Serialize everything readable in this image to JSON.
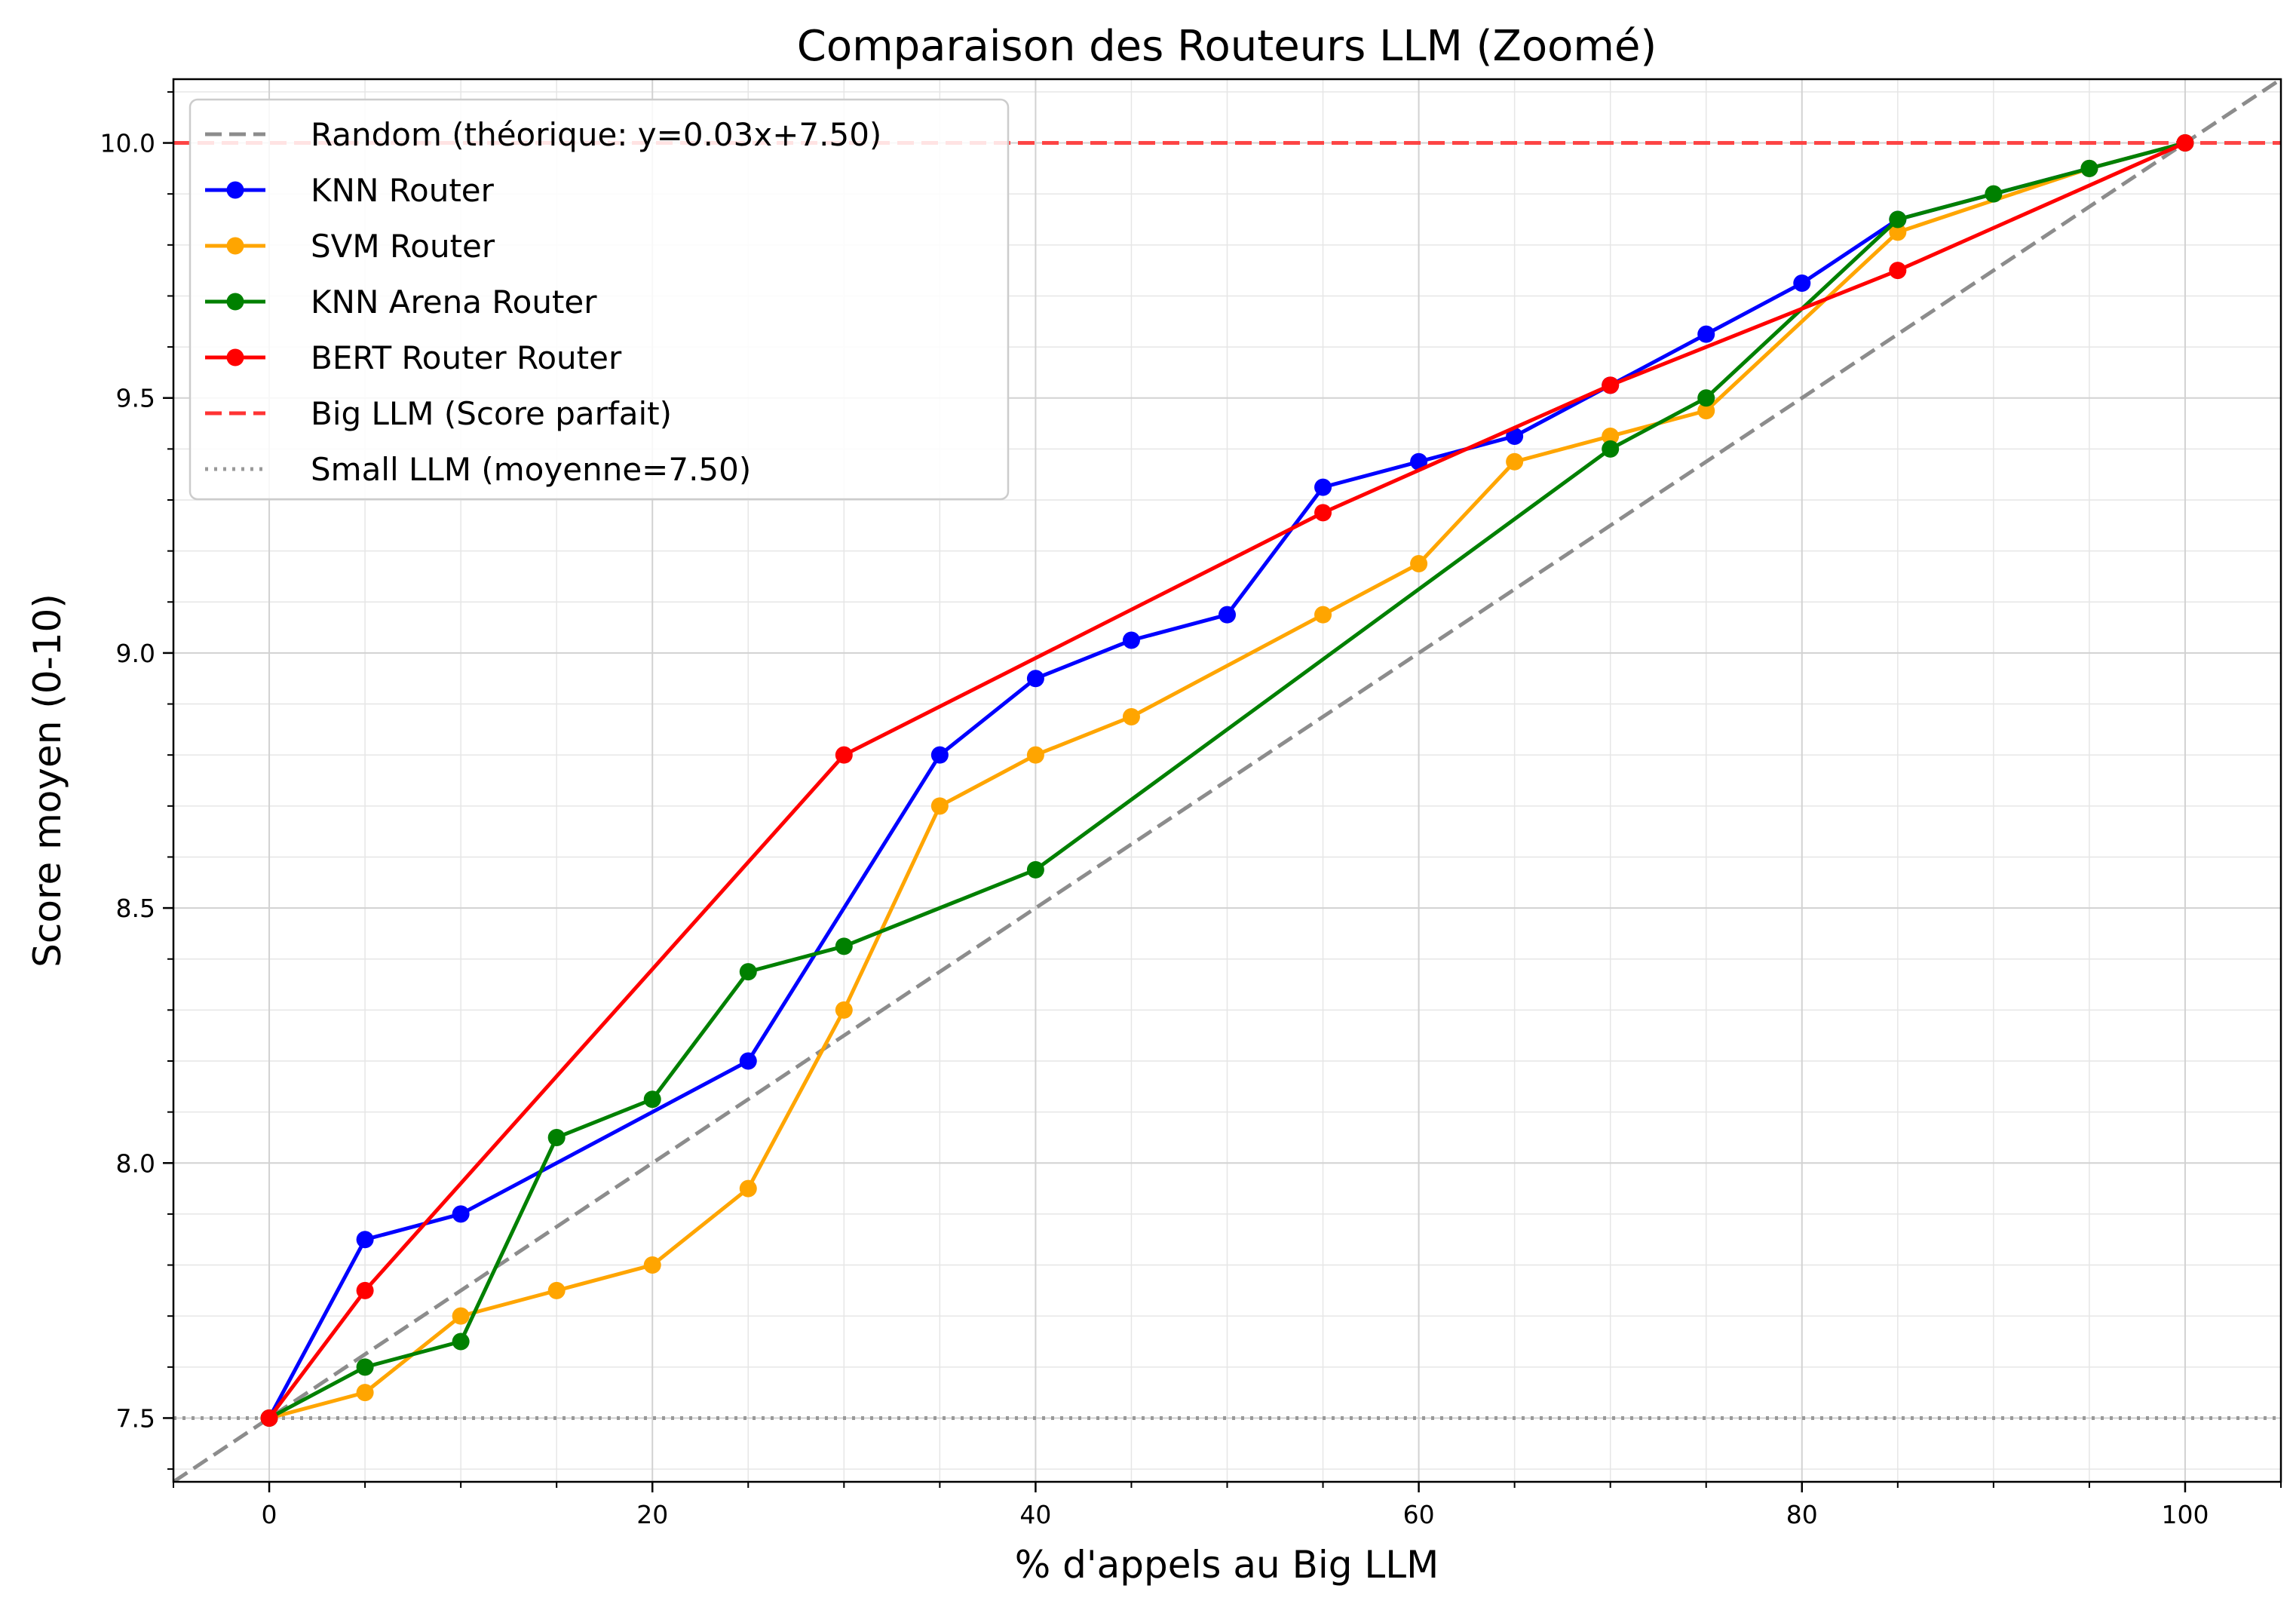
{
  "chart_data": {
    "type": "line",
    "title": "Comparaison des Routeurs LLM (Zoomé)",
    "xlabel": "% d'appels au Big LLM",
    "ylabel": "Score moyen (0-10)",
    "xlim": [
      -5,
      105
    ],
    "ylim": [
      7.375,
      10.125
    ],
    "xticks": [
      0,
      20,
      40,
      60,
      80,
      100
    ],
    "xtick_labels": [
      "0",
      "20",
      "40",
      "60",
      "80",
      "100"
    ],
    "yticks": [
      7.5,
      8.0,
      8.5,
      9.0,
      9.5,
      10.0
    ],
    "ytick_labels": [
      "7.5",
      "8.0",
      "8.5",
      "9.0",
      "9.5",
      "10.0"
    ],
    "grid": true,
    "legend_position": "top-left",
    "series": [
      {
        "name": "KNN Router",
        "color": "#0000ff",
        "x": [
          0,
          5,
          10,
          25,
          35,
          40,
          45,
          50,
          55,
          60,
          65,
          70,
          75,
          80,
          85,
          95,
          100
        ],
        "y": [
          7.5,
          7.85,
          7.9,
          8.2,
          8.8,
          8.95,
          9.025,
          9.075,
          9.325,
          9.375,
          9.425,
          9.525,
          9.625,
          9.725,
          9.85,
          9.95,
          10.0
        ]
      },
      {
        "name": "SVM Router",
        "color": "#ffa500",
        "x": [
          0,
          5,
          10,
          15,
          20,
          25,
          30,
          35,
          40,
          45,
          55,
          60,
          65,
          70,
          75,
          85,
          95,
          100
        ],
        "y": [
          7.5,
          7.55,
          7.7,
          7.75,
          7.8,
          7.95,
          8.3,
          8.7,
          8.8,
          8.875,
          9.075,
          9.175,
          9.375,
          9.425,
          9.475,
          9.825,
          9.95,
          10.0
        ]
      },
      {
        "name": "KNN Arena Router",
        "color": "#008000",
        "x": [
          0,
          5,
          10,
          15,
          20,
          25,
          30,
          40,
          70,
          75,
          85,
          90,
          95,
          100
        ],
        "y": [
          7.5,
          7.6,
          7.65,
          8.05,
          8.125,
          8.375,
          8.425,
          8.575,
          9.4,
          9.5,
          9.85,
          9.9,
          9.95,
          10.0
        ]
      },
      {
        "name": "BERT Router Router",
        "color": "#ff0000",
        "x": [
          0,
          5,
          30,
          55,
          70,
          85,
          100
        ],
        "y": [
          7.5,
          7.75,
          8.8,
          9.275,
          9.525,
          9.75,
          10.0
        ]
      }
    ],
    "reference_lines": [
      {
        "name": "Random (théorique: y=0.03x+7.50)",
        "kind": "diagonal",
        "slope": 0.025,
        "intercept": 7.5,
        "color": "#8c8c8c",
        "style": "dashed"
      },
      {
        "name": "Big LLM (Score parfait)",
        "kind": "horizontal",
        "y": 10.0,
        "color": "#ff3333",
        "style": "dashed"
      },
      {
        "name": "Small LLM (moyenne=7.50)",
        "kind": "horizontal",
        "y": 7.5,
        "color": "#999999",
        "style": "dotted"
      }
    ]
  }
}
